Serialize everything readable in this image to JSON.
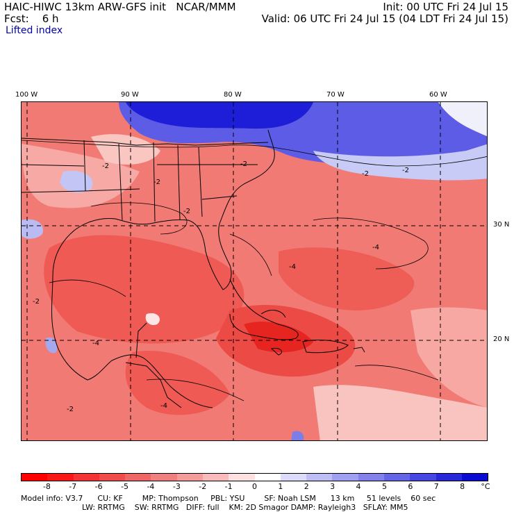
{
  "header": {
    "line1_left": "HAIC-HIWC 13km ARW-GFS init   NCAR/MMM",
    "line2_left": "Fcst:    6 h",
    "line3_left": "Lifted index",
    "line1_right": "Init: 00 UTC Fri 24 Jul 15",
    "line2_right": "Valid: 06 UTC Fri 24 Jul 15 (04 LDT Fri 24 Jul 15)"
  },
  "map": {
    "lon_labels": [
      "100 W",
      "90 W",
      "80 W",
      "70 W",
      "60 W"
    ],
    "lat_labels": [
      "30 N",
      "20 N"
    ],
    "contour_labels": [
      "-2",
      "-2",
      "-2",
      "-2",
      "-2",
      "-2",
      "-2",
      "-4",
      "-4",
      "-4",
      "-4",
      "-2"
    ],
    "colors": {
      "strong_negative": "#e8201e",
      "moderate_negative": "#f46a66",
      "weak_negative": "#f9aaa6",
      "near_zero": "#fde6e4",
      "positive_weak": "#c8ccf6",
      "positive_strong": "#1a1ad6",
      "land_line": "#000000"
    }
  },
  "colorbar": {
    "tick_labels": [
      "-8",
      "-7",
      "-6",
      "-5",
      "-4",
      "-3",
      "-2",
      "-1",
      "0",
      "1",
      "2",
      "3",
      "4",
      "5",
      "6",
      "7",
      "8"
    ],
    "unit": "°C",
    "colors": [
      "#ff0000",
      "#f81818",
      "#f43434",
      "#f04c4c",
      "#ee6666",
      "#f08080",
      "#f49c9c",
      "#f8baba",
      "#fde0e0",
      "#ffffff",
      "#dcdcfa",
      "#bebef4",
      "#a0a0f0",
      "#8282ea",
      "#6464e6",
      "#4646e0",
      "#2828d8",
      "#0a0ad0"
    ]
  },
  "footer": {
    "line1": "Model info: V3.7      CU: KF        MP: Thompson     PBL: YSU        SF: Noah LSM      13 km     51 levels    60 sec",
    "line2": "LW: RRTMG    SW: RRTMG   DIFF: full    KM: 2D Smagor DAMP: Rayleigh3   SFLAY: MM5"
  }
}
